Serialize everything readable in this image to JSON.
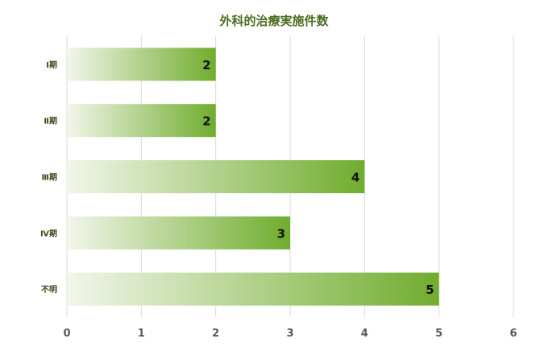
{
  "chart_data": {
    "type": "bar",
    "orientation": "horizontal",
    "title": "外科的治療実施件数",
    "categories": [
      "Ⅰ期",
      "Ⅱ期",
      "Ⅲ期",
      "Ⅳ期",
      "不明"
    ],
    "values": [
      2,
      2,
      4,
      3,
      5
    ],
    "xlim": [
      0,
      6
    ],
    "xticks": [
      "0",
      "1",
      "2",
      "3",
      "4",
      "5",
      "6"
    ],
    "grid": true,
    "legend": "none",
    "data_labels": true,
    "colors": {
      "bar_start": "#f2f6ea",
      "bar_end": "#70ad2e",
      "title": "#4a6b1f",
      "grid": "#d9d9d9"
    }
  }
}
